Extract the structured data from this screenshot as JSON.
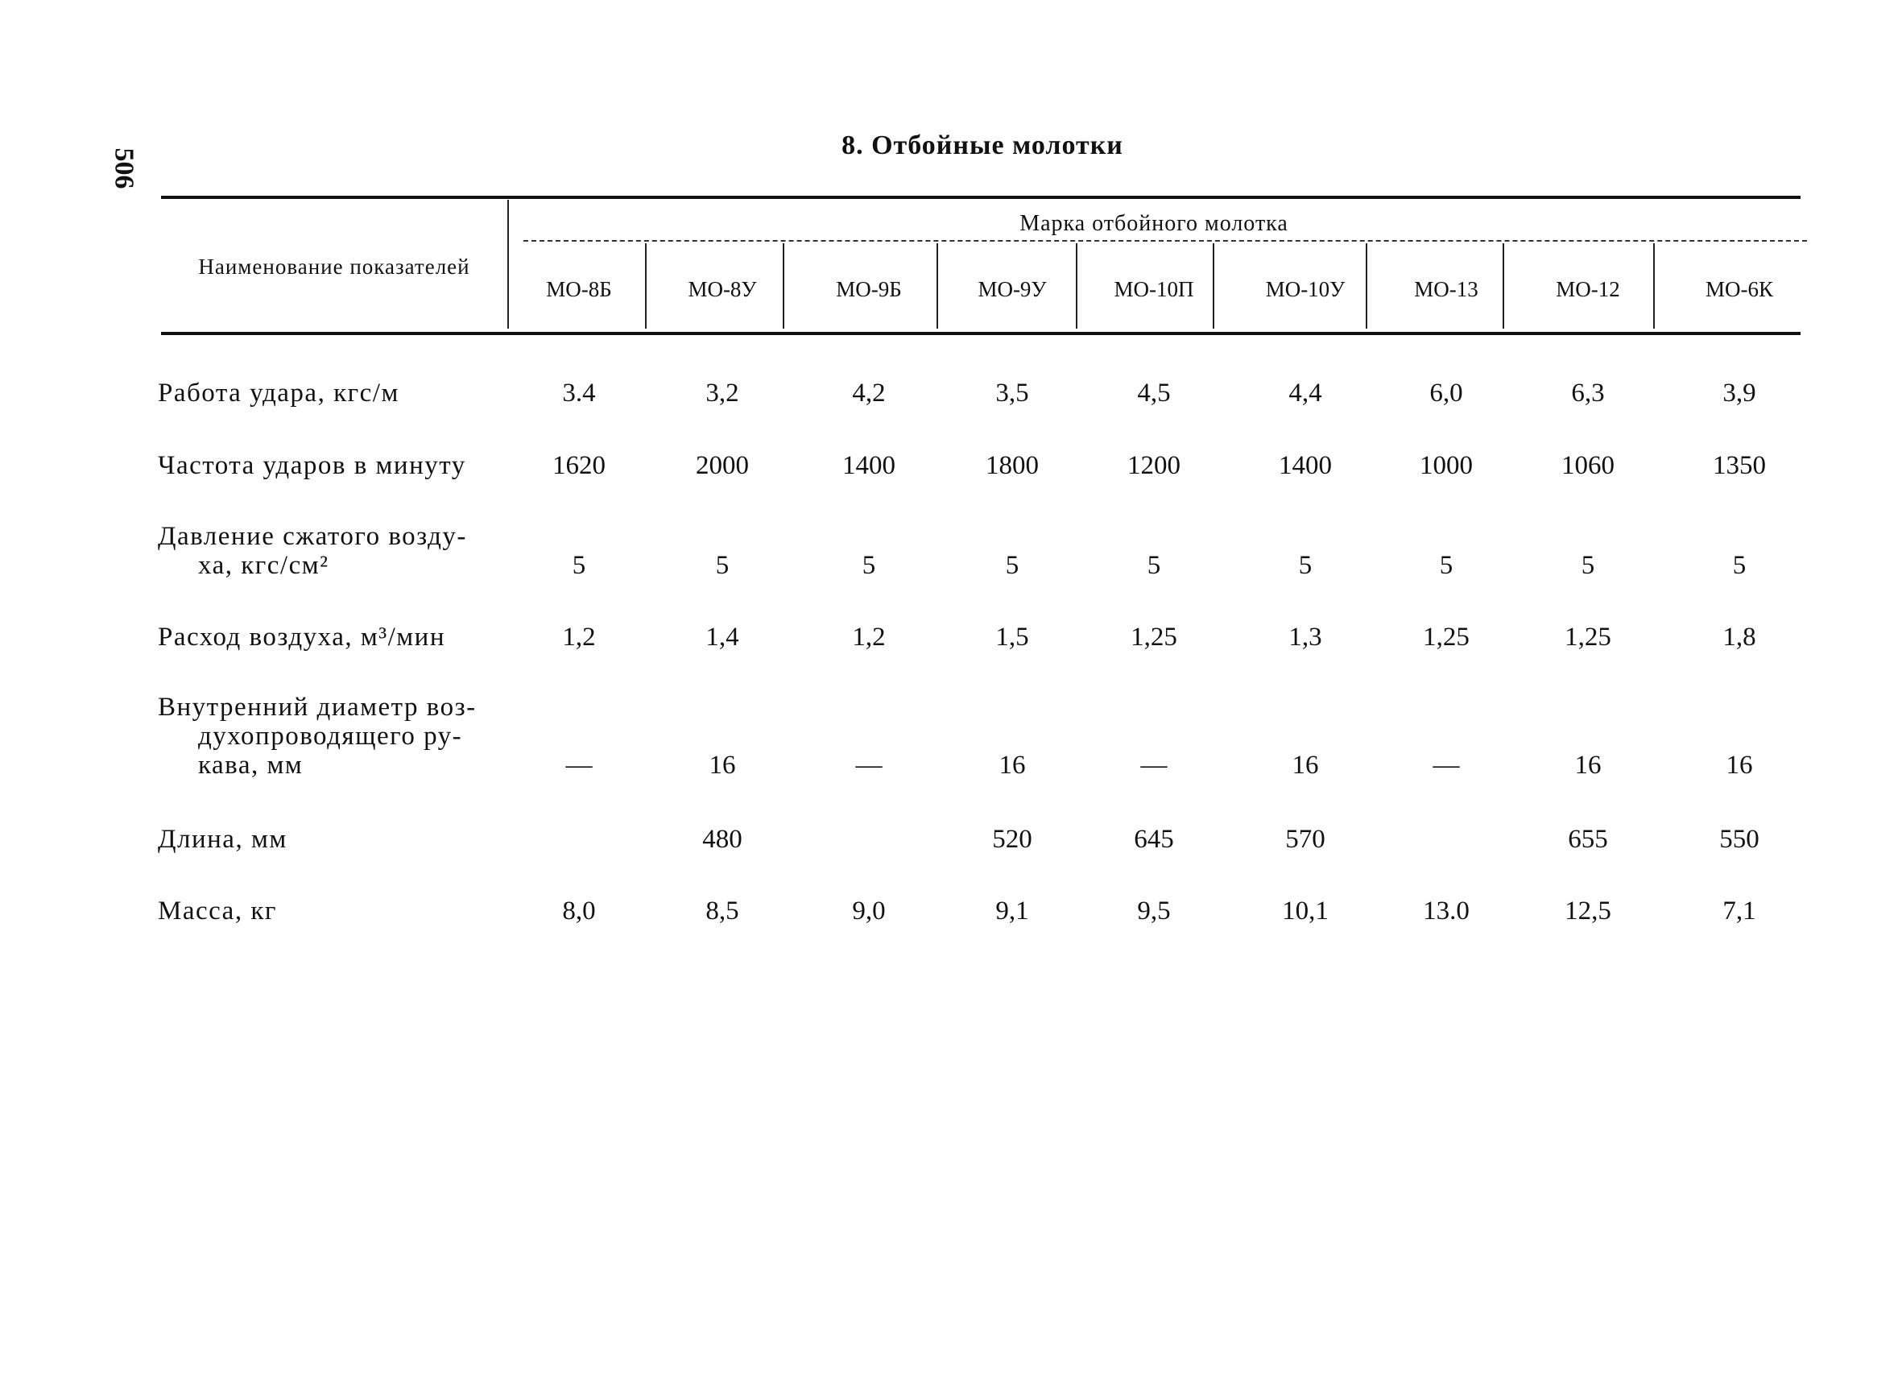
{
  "page_number": "506",
  "title": "8. Отбойные молотки",
  "table": {
    "row_header": "Наименование показателей",
    "group_header": "Марка отбойного молотка",
    "columns": [
      "МО-8Б",
      "МО-8У",
      "МО-9Б",
      "МО-9У",
      "МО-10П",
      "МО-10У",
      "МО-13",
      "МО-12",
      "МО-6К"
    ],
    "rows": [
      {
        "label": [
          "Работа удара, кгс/м"
        ],
        "values": [
          "3.4",
          "3,2",
          "4,2",
          "3,5",
          "4,5",
          "4,4",
          "6,0",
          "6,3",
          "3,9"
        ]
      },
      {
        "label": [
          "Частота ударов в минуту"
        ],
        "values": [
          "1620",
          "2000",
          "1400",
          "1800",
          "1200",
          "1400",
          "1000",
          "1060",
          "1350"
        ]
      },
      {
        "label": [
          "Давление сжатого возду-",
          "ха, кгс/см²"
        ],
        "values": [
          "5",
          "5",
          "5",
          "5",
          "5",
          "5",
          "5",
          "5",
          "5"
        ]
      },
      {
        "label": [
          "Расход воздуха, м³/мин"
        ],
        "values": [
          "1,2",
          "1,4",
          "1,2",
          "1,5",
          "1,25",
          "1,3",
          "1,25",
          "1,25",
          "1,8"
        ]
      },
      {
        "label": [
          "Внутренний диаметр воз-",
          "духопроводящего ру-",
          "кава, мм"
        ],
        "values": [
          "—",
          "16",
          "—",
          "16",
          "—",
          "16",
          "—",
          "16",
          "16"
        ]
      },
      {
        "label": [
          "Длина, мм"
        ],
        "values": [
          "",
          "480",
          "",
          "520",
          "645",
          "570",
          "",
          "655",
          "550"
        ]
      },
      {
        "label": [
          "Масса, кг"
        ],
        "values": [
          "8,0",
          "8,5",
          "9,0",
          "9,1",
          "9,5",
          "10,1",
          "13.0",
          "12,5",
          "7,1"
        ]
      }
    ]
  }
}
